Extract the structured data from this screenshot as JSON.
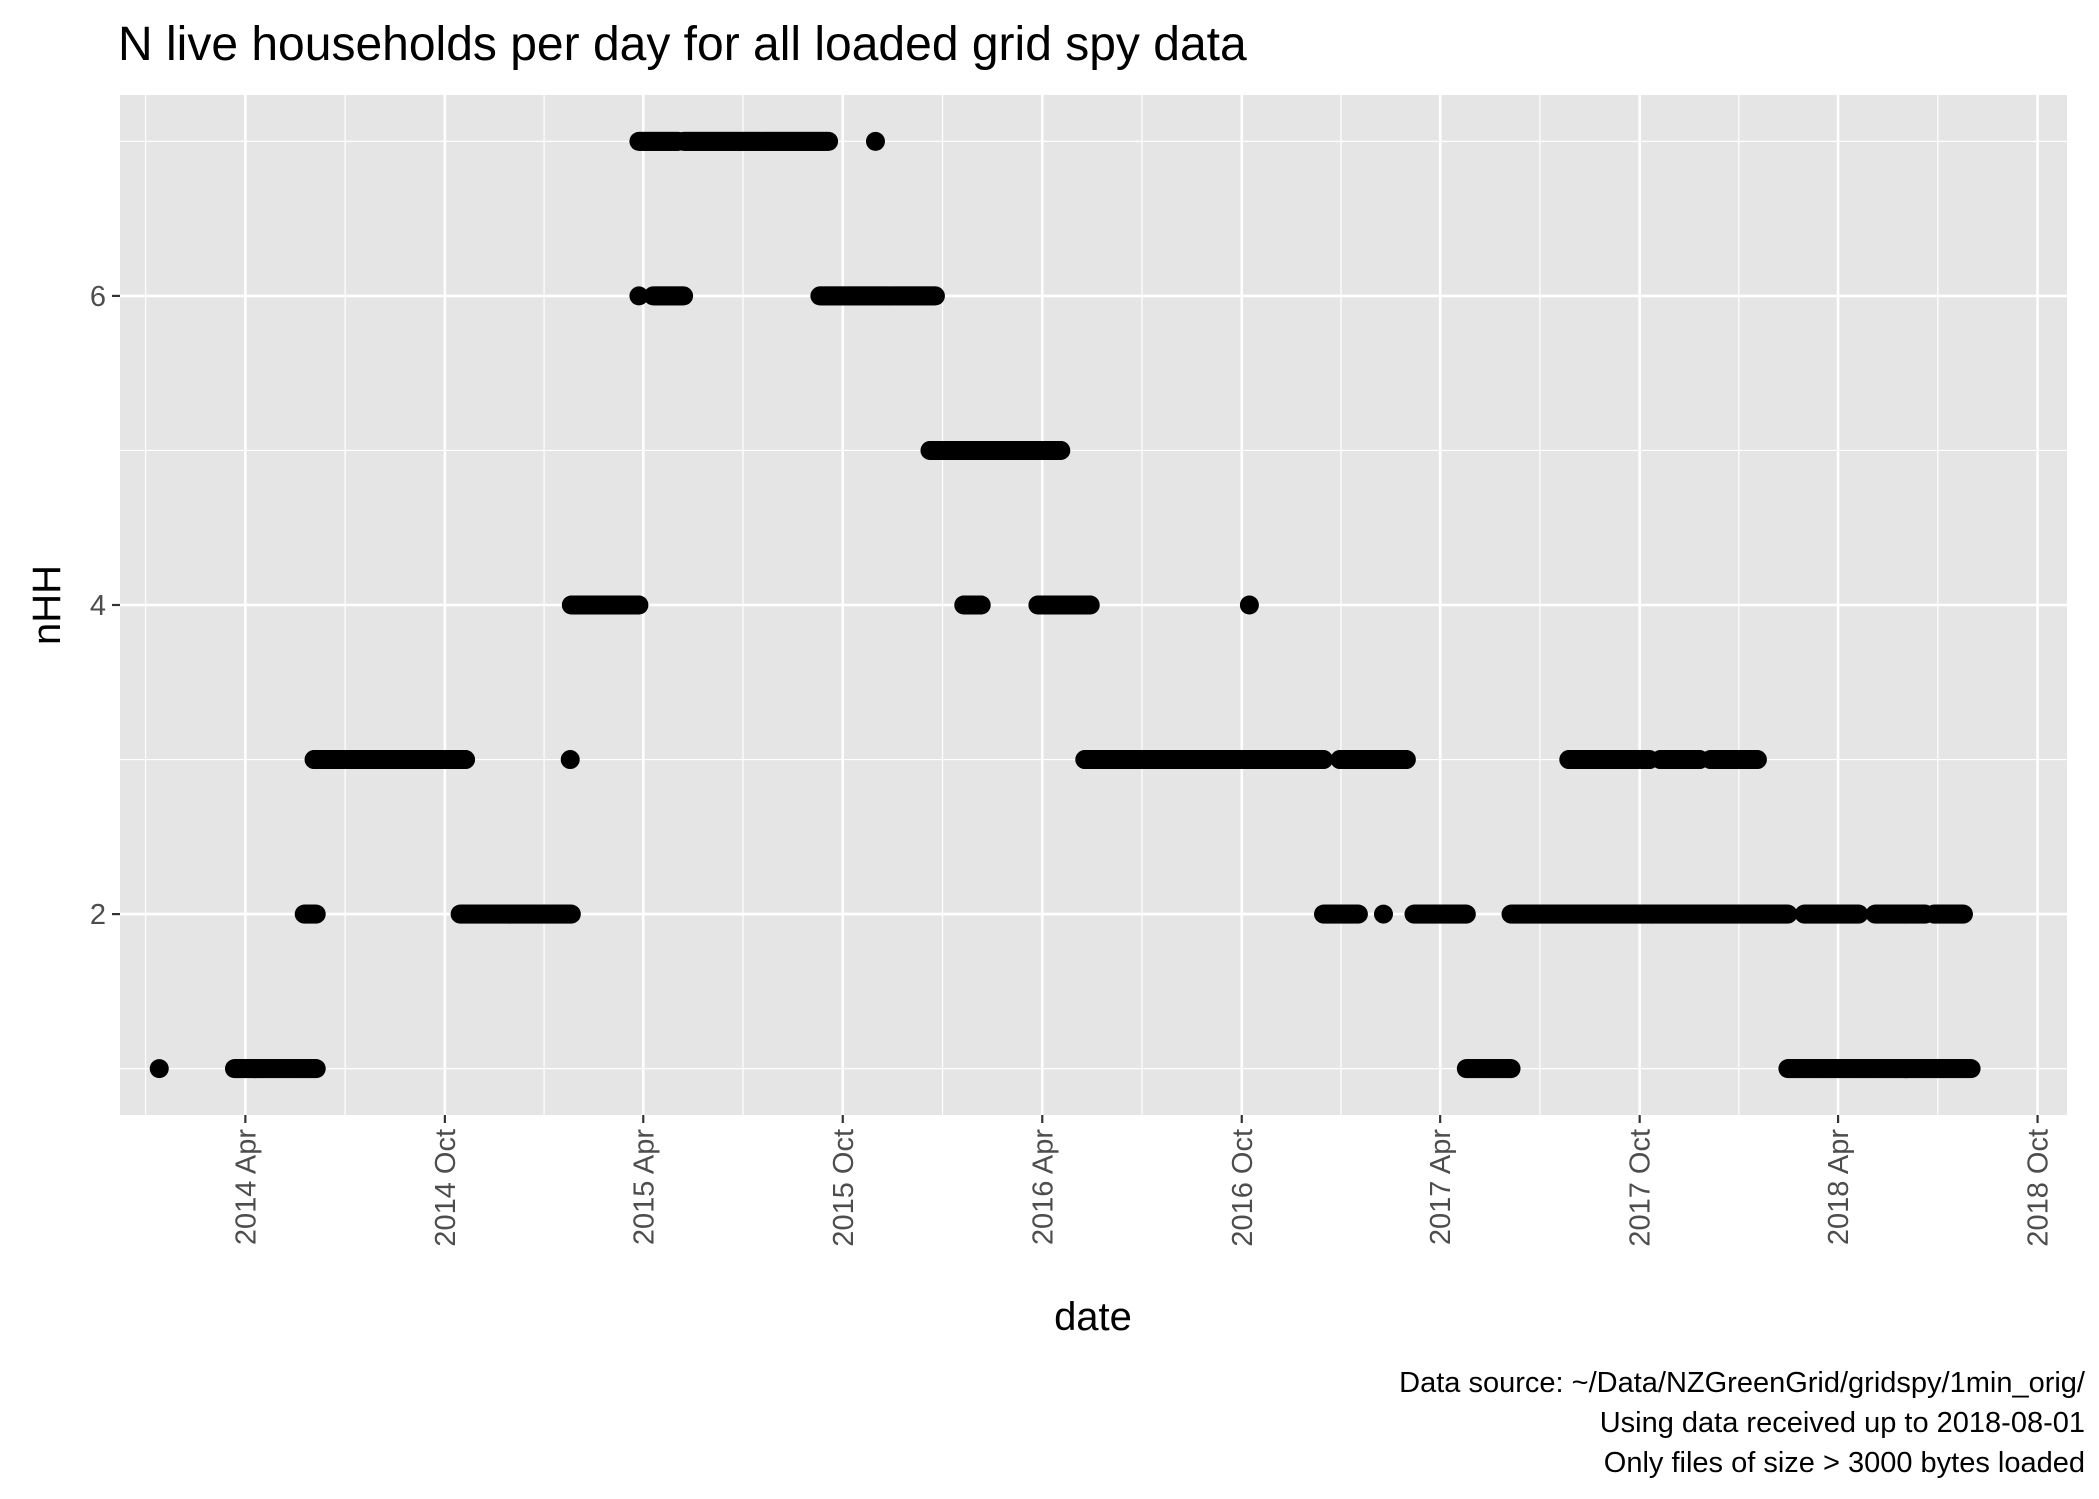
{
  "chart_data": {
    "type": "scatter",
    "title": "N live households per day for all loaded grid spy data",
    "xlabel": "date",
    "ylabel": "nHH",
    "x_tick_labels": [
      "2014 Apr",
      "2014 Oct",
      "2015 Apr",
      "2015 Oct",
      "2016 Apr",
      "2016 Oct",
      "2017 Apr",
      "2017 Oct",
      "2018 Apr",
      "2018 Oct"
    ],
    "x_tick_dates": [
      "2014-04-01",
      "2014-10-01",
      "2015-04-01",
      "2015-10-01",
      "2016-04-01",
      "2016-10-01",
      "2017-04-01",
      "2017-10-01",
      "2018-04-01",
      "2018-10-01"
    ],
    "y_tick_labels": [
      "2",
      "4",
      "6"
    ],
    "y_ticks": [
      2,
      4,
      6
    ],
    "xlim": [
      "2013-12-07",
      "2018-10-28"
    ],
    "ylim": [
      0.7,
      7.3
    ],
    "grid": true,
    "caption": [
      "Data source: ~/Data/NZGreenGrid/gridspy/1min_orig/",
      "Using data received up to 2018-08-01",
      "Only files of size > 3000 bytes loaded"
    ],
    "point_color": "#000000",
    "panel_color": "#e5e5e5",
    "grid_color": "#ffffff",
    "segments": [
      {
        "start": "2014-01-12",
        "end": "2014-01-12",
        "y": 1
      },
      {
        "start": "2014-03-22",
        "end": "2014-06-05",
        "y": 1
      },
      {
        "start": "2014-05-25",
        "end": "2014-06-05",
        "y": 2
      },
      {
        "start": "2014-06-03",
        "end": "2014-10-20",
        "y": 3
      },
      {
        "start": "2014-10-15",
        "end": "2015-01-25",
        "y": 2
      },
      {
        "start": "2015-01-24",
        "end": "2015-01-24",
        "y": 3
      },
      {
        "start": "2015-01-25",
        "end": "2015-03-28",
        "y": 4
      },
      {
        "start": "2015-03-28",
        "end": "2015-03-28",
        "y": 6
      },
      {
        "start": "2015-04-10",
        "end": "2015-05-08",
        "y": 6
      },
      {
        "start": "2015-03-28",
        "end": "2015-05-03",
        "y": 7
      },
      {
        "start": "2015-05-08",
        "end": "2015-09-18",
        "y": 7
      },
      {
        "start": "2015-10-31",
        "end": "2015-10-31",
        "y": 7
      },
      {
        "start": "2015-09-10",
        "end": "2015-12-25",
        "y": 6
      },
      {
        "start": "2015-12-20",
        "end": "2016-03-30",
        "y": 5
      },
      {
        "start": "2016-03-30",
        "end": "2016-04-18",
        "y": 5
      },
      {
        "start": "2016-01-20",
        "end": "2016-02-05",
        "y": 4
      },
      {
        "start": "2016-03-28",
        "end": "2016-05-15",
        "y": 4
      },
      {
        "start": "2016-10-08",
        "end": "2016-10-08",
        "y": 4
      },
      {
        "start": "2016-05-10",
        "end": "2016-12-15",
        "y": 3
      },
      {
        "start": "2016-12-30",
        "end": "2017-03-01",
        "y": 3
      },
      {
        "start": "2016-12-15",
        "end": "2017-01-16",
        "y": 2
      },
      {
        "start": "2017-02-08",
        "end": "2017-02-08",
        "y": 2
      },
      {
        "start": "2017-03-08",
        "end": "2017-04-25",
        "y": 2
      },
      {
        "start": "2017-04-25",
        "end": "2017-06-05",
        "y": 1
      },
      {
        "start": "2017-06-05",
        "end": "2018-02-14",
        "y": 2
      },
      {
        "start": "2017-07-28",
        "end": "2017-10-10",
        "y": 3
      },
      {
        "start": "2017-10-20",
        "end": "2017-11-25",
        "y": 3
      },
      {
        "start": "2017-12-05",
        "end": "2018-01-17",
        "y": 3
      },
      {
        "start": "2018-02-14",
        "end": "2018-08-01",
        "y": 1
      },
      {
        "start": "2018-03-01",
        "end": "2018-04-20",
        "y": 2
      },
      {
        "start": "2018-05-05",
        "end": "2018-06-20",
        "y": 2
      },
      {
        "start": "2018-06-28",
        "end": "2018-07-25",
        "y": 2
      }
    ]
  }
}
